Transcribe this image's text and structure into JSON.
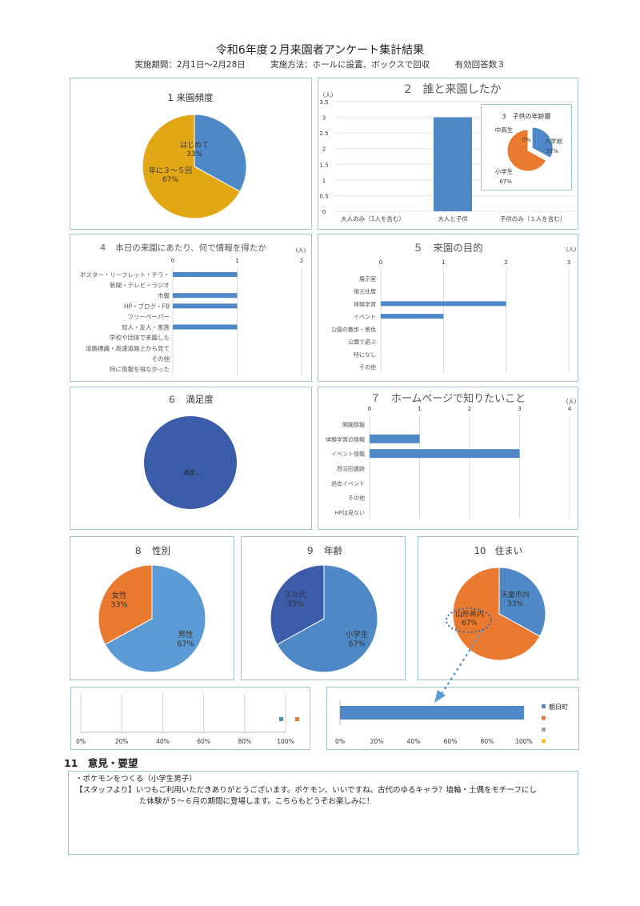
{
  "header": {
    "title": "令和6年度２月来園者アンケート集計結果",
    "period": "実施期間：2月1日～2月28日",
    "method": "実施方法：ホールに設置、ボックスで回収",
    "responses": "有効回答数３"
  },
  "colors": {
    "blue": "#4f88c6",
    "gold": "#e2a714",
    "orange": "#ea7a2f",
    "dark_blue": "#3b5ca8",
    "light_blue": "#5b9bd5",
    "gray": "#a5a5a5",
    "yellow": "#ffc000",
    "border": "#9cc3d8"
  },
  "chart_data": [
    {
      "id": "c1",
      "type": "pie",
      "title": "1  来園頻度",
      "slices": [
        {
          "label": "はじめて",
          "pct": "33%",
          "value": 33,
          "color": "#4f88c6"
        },
        {
          "label": "年に３～５回",
          "pct": "67%",
          "value": 67,
          "color": "#e2a714"
        }
      ]
    },
    {
      "id": "c2",
      "type": "bar",
      "title": "2　誰と来園したか",
      "unit": "(人)",
      "categories": [
        "大人のみ（1人を含む）",
        "大人と子供",
        "子供のみ（１人を含む）"
      ],
      "values": [
        0,
        3,
        0
      ],
      "ylim": [
        0,
        3.5
      ],
      "yticks": [
        "0",
        "0.5",
        "1",
        "1.5",
        "2",
        "2.5",
        "3",
        "3.5"
      ],
      "grid": true
    },
    {
      "id": "c3",
      "type": "pie",
      "title": "3　子供の年齢層",
      "slices": [
        {
          "label": "入学前",
          "pct": "33%",
          "value": 33,
          "color": "#4f88c6"
        },
        {
          "label": "中高生",
          "pct": "0%",
          "value": 0,
          "color": "#a5a5a5"
        },
        {
          "label": "小学生",
          "pct": "67%",
          "value": 67,
          "color": "#ea7a2f"
        }
      ]
    },
    {
      "id": "c4",
      "type": "bar-horizontal",
      "title": "４　本日の来園にあたり、何で情報を得たか",
      "unit": "(人)",
      "categories": [
        "ポスター・リーフレット・チラ・",
        "新聞・テレビ・ラジオ",
        "市報",
        "HP・ブログ・FB",
        "フリーペーパー",
        "知人・友人・家族",
        "学校や団体で来園した",
        "道路標識・高速道路上から見て",
        "その他",
        "特に情報を得なかった"
      ],
      "values": [
        1,
        0,
        1,
        1,
        0,
        1,
        0,
        0,
        0,
        0
      ],
      "xlim": [
        0,
        2
      ],
      "xticks": [
        "0",
        "1",
        "2"
      ],
      "grid": true
    },
    {
      "id": "c5",
      "type": "bar-horizontal",
      "title": "５　来園の目的",
      "unit": "(人)",
      "categories": [
        "展示室",
        "復元住居",
        "体験学習",
        "イベント",
        "公園の散歩・景色",
        "公園で遊ぶ",
        "特になし",
        "その他"
      ],
      "values": [
        0,
        0,
        2,
        1,
        0,
        0,
        0,
        0
      ],
      "xlim": [
        0,
        3
      ],
      "xticks": [
        "0",
        "1",
        "2",
        "3"
      ],
      "grid": true
    },
    {
      "id": "c6",
      "type": "pie",
      "title": "６　満足度",
      "slices": [
        {
          "label": "満足…",
          "pct": "",
          "value": 100,
          "color": "#3b5ca8"
        }
      ]
    },
    {
      "id": "c7",
      "type": "bar-horizontal",
      "title": "７　ホームページで知りたいこと",
      "unit": "(人)",
      "categories": [
        "開園情報",
        "体験学習の情報",
        "イベント情報",
        "西沼田遺跡",
        "過去イベント",
        "その他",
        "HPは見ない"
      ],
      "values": [
        0,
        1,
        3,
        0,
        0,
        0,
        0
      ],
      "xlim": [
        0,
        4
      ],
      "xticks": [
        "0",
        "1",
        "2",
        "3",
        "4"
      ],
      "grid": true
    },
    {
      "id": "c8",
      "type": "pie",
      "title": "８　性別",
      "slices": [
        {
          "label": "男性",
          "pct": "67%",
          "value": 67,
          "color": "#5b9bd5"
        },
        {
          "label": "女性",
          "pct": "33%",
          "value": 33,
          "color": "#ea7a2f"
        }
      ]
    },
    {
      "id": "c9",
      "type": "pie",
      "title": "９　年齢",
      "slices": [
        {
          "label": "小学生",
          "pct": "67%",
          "value": 67,
          "color": "#4f88c6"
        },
        {
          "label": "３０代",
          "pct": "33%",
          "value": 33,
          "color": "#3b5ca8"
        }
      ]
    },
    {
      "id": "c10",
      "type": "pie",
      "title": "10　住まい",
      "slices": [
        {
          "label": "天童市内",
          "pct": "33%",
          "value": 33,
          "color": "#4f88c6"
        },
        {
          "label": "山形県内",
          "pct": "67%",
          "value": 67,
          "color": "#ea7a2f"
        }
      ]
    },
    {
      "id": "c11",
      "type": "bar-horizontal-stacked",
      "title": "",
      "values": [],
      "xlim": [
        0,
        100
      ],
      "xticks": [
        "0%",
        "20%",
        "40%",
        "60%",
        "80%",
        "100%"
      ],
      "legend": [
        {
          "label": "",
          "color": "#4f88c6"
        },
        {
          "label": "",
          "color": "#ea7a2f"
        }
      ],
      "grid": true
    },
    {
      "id": "c12",
      "type": "bar-horizontal-stacked",
      "title": "",
      "series": [
        {
          "name": "朝日町",
          "values": [
            100
          ],
          "color": "#4f88c6"
        },
        {
          "name": "",
          "values": [
            0
          ],
          "color": "#ea7a2f"
        },
        {
          "name": "",
          "values": [
            0
          ],
          "color": "#a5a5a5"
        },
        {
          "name": "",
          "values": [
            0
          ],
          "color": "#ffc000"
        }
      ],
      "xlim": [
        0,
        100
      ],
      "xticks": [
        "0%",
        "20%",
        "40%",
        "60%",
        "80%",
        "100%"
      ],
      "legend_position": "right"
    }
  ],
  "comments": {
    "heading": "11　意見・要望",
    "line1": "・ポケモンをつくる（小学生男子）",
    "line2": "【スタッフより】いつもご利用いただきありがとうございます。ポケモン、いいですね。古代のゆるキャラ？埴輪・土偶をモチーフにし",
    "line3": "た体験が５～６月の期間に登場します。こちらもどうぞお楽しみに！"
  }
}
